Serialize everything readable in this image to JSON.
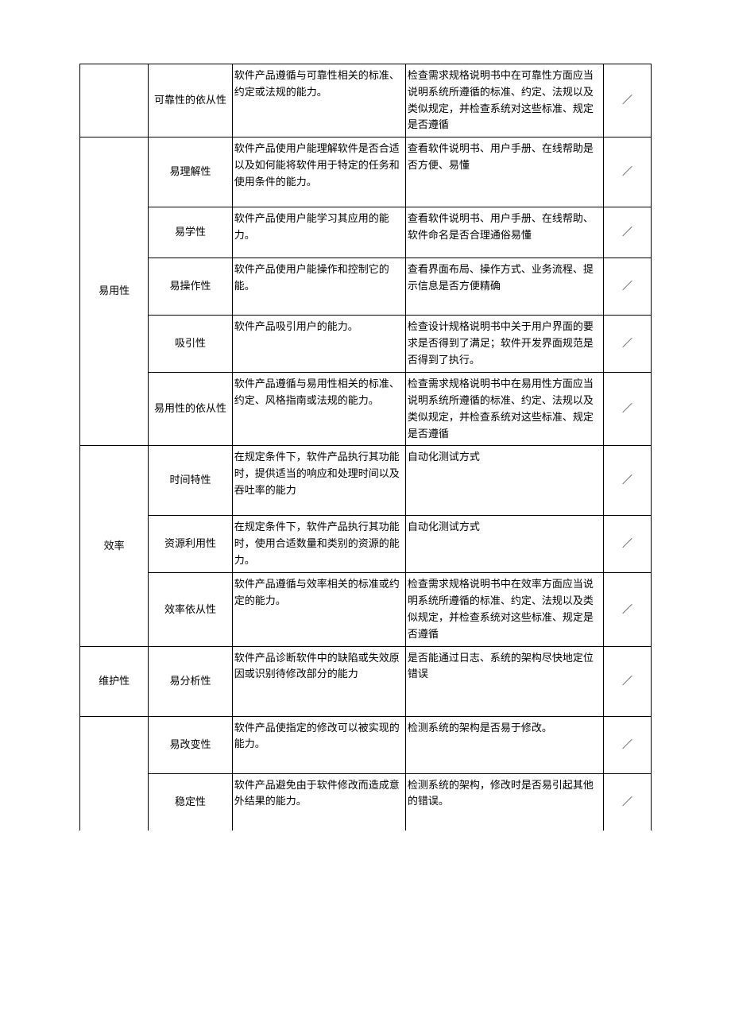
{
  "table": {
    "border_color": "#000000",
    "background_color": "#ffffff",
    "font_size": 13,
    "mark": "／",
    "rows": [
      {
        "category": "",
        "subcategory": "可靠性的依从性",
        "description": "软件产品遵循与可靠性相关的标准、约定或法规的能力。",
        "check": "检查需求规格说明书中在可靠性方面应当说明系统所遵循的标准、约定、法规以及类似规定，并检查系统对这些标准、规定是否遵循"
      },
      {
        "category": "易用性",
        "subcategory": "易理解性",
        "description": "软件产品使用户能理解软件是否合适以及如何能将软件用于特定的任务和使用条件的能力。",
        "check": "查看软件说明书、用户手册、在线帮助是否方便、易懂"
      },
      {
        "category": "",
        "subcategory": "易学性",
        "description": "软件产品使用户能学习其应用的能力。",
        "check": "查看软件说明书、用户手册、在线帮助、软件命名是否合理通俗易懂"
      },
      {
        "category": "",
        "subcategory": "易操作性",
        "description": "软件产品使用户能操作和控制它的能。",
        "check": "查看界面布局、操作方式、业务流程、提示信息是否方便精确"
      },
      {
        "category": "",
        "subcategory": "吸引性",
        "description": "软件产品吸引用户的能力。",
        "check": "检查设计规格说明书中关于用户界面的要求是否得到了满足；软件开发界面规范是否得到了执行。"
      },
      {
        "category": "",
        "subcategory": "易用性的依从性",
        "description": "软件产品遵循与易用性相关的标准、约定、风格指南或法规的能力。",
        "check": "检查需求规格说明书中在易用性方面应当说明系统所遵循的标准、约定、法规以及类似规定，并检查系统对这些标准、规定是否遵循"
      },
      {
        "category": "效率",
        "subcategory": "时间特性",
        "description": "在规定条件下，软件产品执行其功能时，提供适当的响应和处理时间以及吞吐率的能力",
        "check": "自动化测试方式"
      },
      {
        "category": "",
        "subcategory": "资源利用性",
        "description": "在规定条件下，软件产品执行其功能时，使用合适数量和类别的资源的能力。",
        "check": "自动化测试方式"
      },
      {
        "category": "",
        "subcategory": "效率依从性",
        "description": "软件产品遵循与效率相关的标准或约定的能力。",
        "check": "检查需求规格说明书中在效率方面应当说明系统所遵循的标准、约定、法规以及类似规定，并检查系统对这些标准、规定是否遵循"
      },
      {
        "category": "维护性",
        "subcategory": "易分析性",
        "description": "软件产品诊断软件中的缺陷或失效原因或识别待修改部分的能力",
        "check": "是否能通过日志、系统的架构尽快地定位错误"
      },
      {
        "category": "",
        "subcategory": "易改变性",
        "description": "软件产品使指定的修改可以被实现的能力。",
        "check": "检测系统的架构是否易于修改。"
      },
      {
        "category": "",
        "subcategory": "稳定性",
        "description": "软件产品避免由于软件修改而造成意外结果的能力。",
        "check": "检测系统的架构，修改时是否易引起其他的错误。"
      }
    ]
  }
}
